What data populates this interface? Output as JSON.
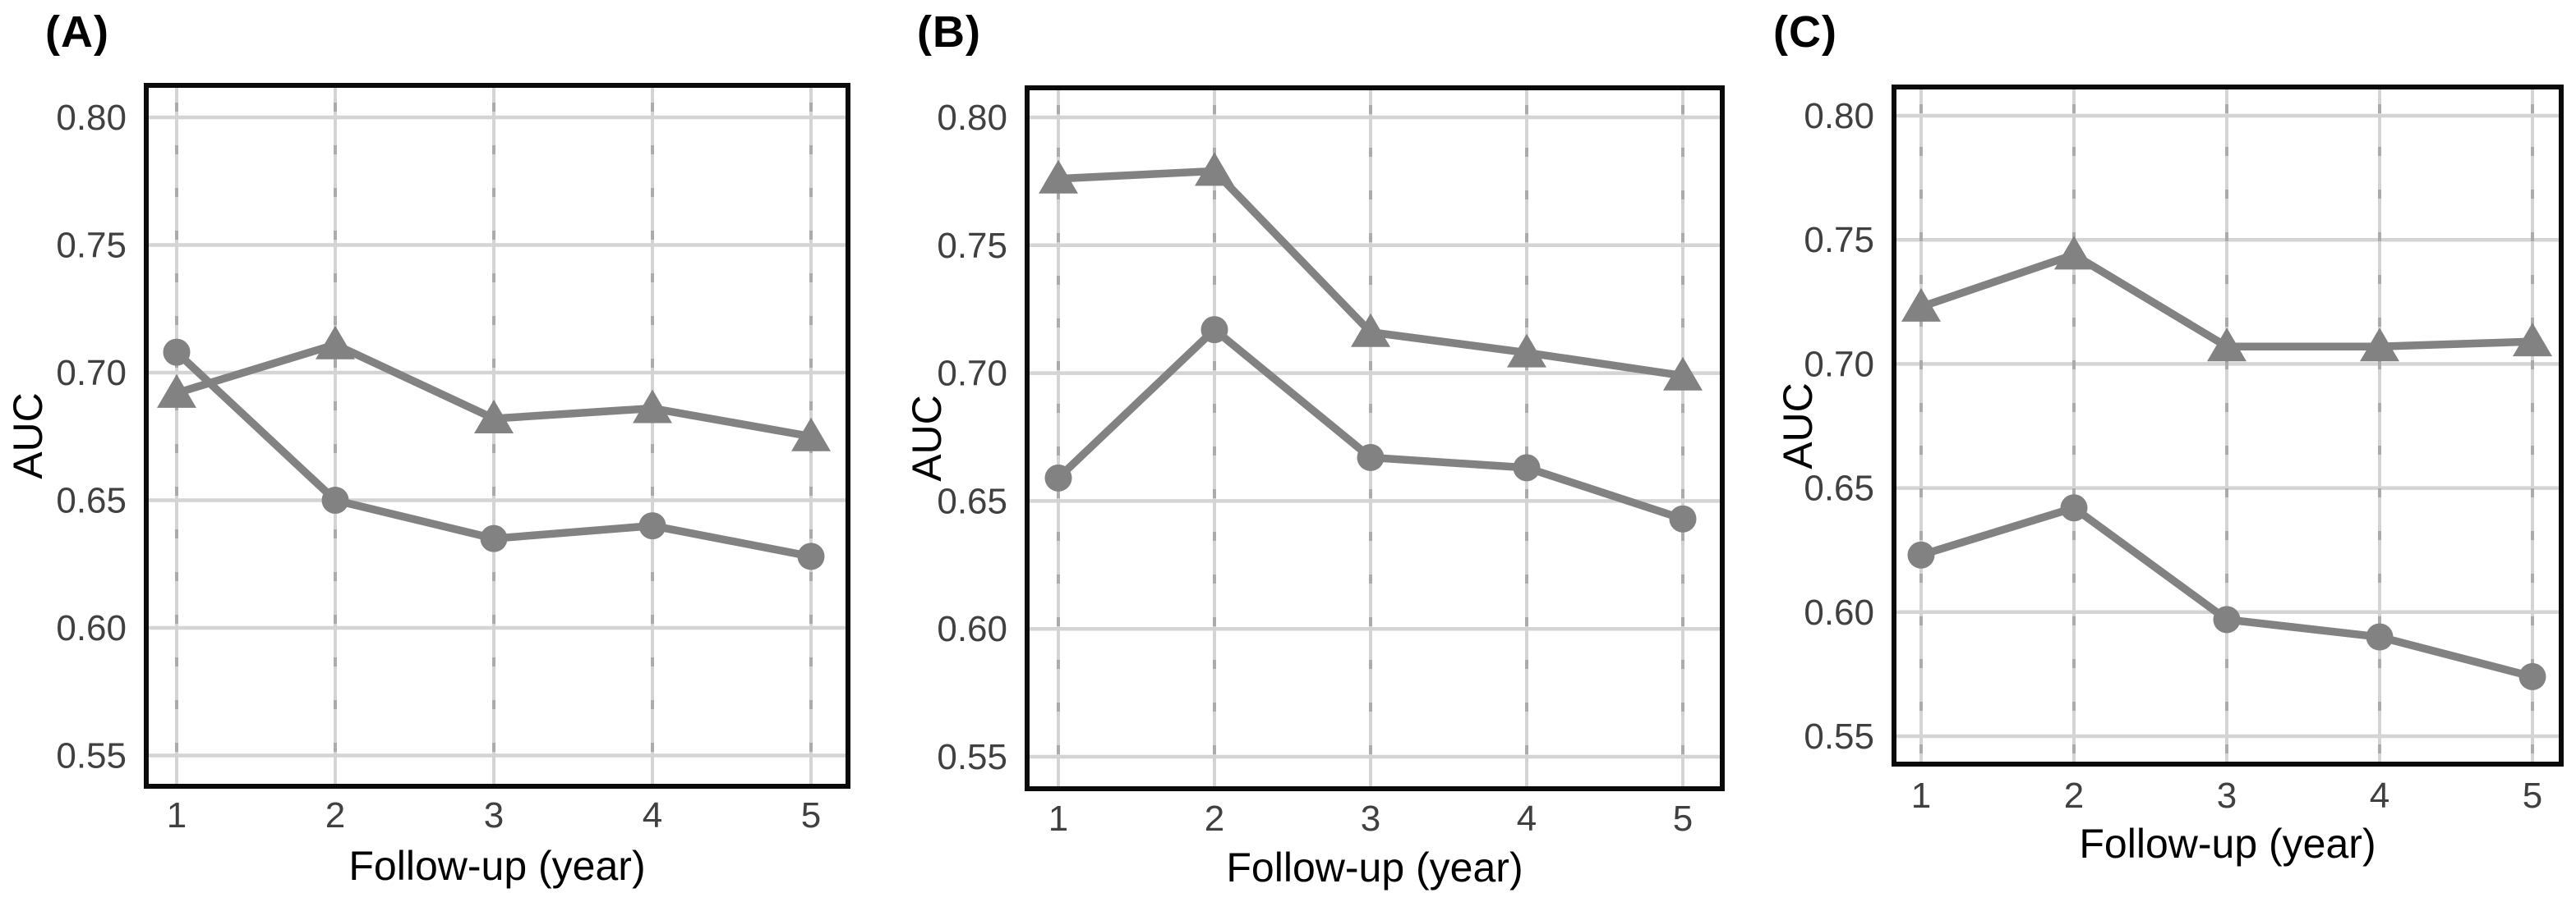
{
  "style": {
    "series_color": "#828282",
    "grid_color": "#d4d4d4",
    "grid_minor_tick_color": "#ababab",
    "border_color": "#0a0a0a",
    "tick_text_color": "#404040",
    "background_color": "#ffffff"
  },
  "chart_data": [
    {
      "type": "line",
      "title": "(A)",
      "xlabel": "Follow-up (year)",
      "ylabel": "AUC",
      "x": [
        1,
        2,
        3,
        4,
        5
      ],
      "x_tick_labels": [
        "1",
        "2",
        "3",
        "4",
        "5"
      ],
      "y_tick_values": [
        0.8,
        0.75,
        0.7,
        0.65,
        0.6,
        0.55
      ],
      "y_tick_labels": [
        "0.80",
        "0.75",
        "0.70",
        "0.65",
        "0.60",
        "0.55"
      ],
      "ylim": [
        0.539,
        0.813
      ],
      "xlim": [
        0.81,
        5.23
      ],
      "grid": true,
      "legend": "none",
      "series": [
        {
          "name": "triangle-series",
          "marker": "triangle",
          "values": [
            0.692,
            0.711,
            0.682,
            0.686,
            0.675
          ]
        },
        {
          "name": "circle-series",
          "marker": "circle",
          "values": [
            0.708,
            0.65,
            0.635,
            0.64,
            0.628
          ]
        }
      ]
    },
    {
      "type": "line",
      "title": "(B)",
      "xlabel": "Follow-up (year)",
      "ylabel": "AUC",
      "x": [
        1,
        2,
        3,
        4,
        5
      ],
      "x_tick_labels": [
        "1",
        "2",
        "3",
        "4",
        "5"
      ],
      "y_tick_values": [
        0.8,
        0.75,
        0.7,
        0.65,
        0.6,
        0.55
      ],
      "y_tick_labels": [
        "0.80",
        "0.75",
        "0.70",
        "0.65",
        "0.60",
        "0.55"
      ],
      "ylim": [
        0.539,
        0.813
      ],
      "xlim": [
        0.8,
        5.25
      ],
      "grid": true,
      "legend": "none",
      "series": [
        {
          "name": "triangle-series",
          "marker": "triangle",
          "values": [
            0.776,
            0.779,
            0.716,
            0.708,
            0.699
          ]
        },
        {
          "name": "circle-series",
          "marker": "circle",
          "values": [
            0.659,
            0.717,
            0.667,
            0.663,
            0.643
          ]
        }
      ]
    },
    {
      "type": "line",
      "title": "(C)",
      "xlabel": "Follow-up (year)",
      "ylabel": "AUC",
      "x": [
        1,
        2,
        3,
        4,
        5
      ],
      "x_tick_labels": [
        "1",
        "2",
        "3",
        "4",
        "5"
      ],
      "y_tick_values": [
        0.8,
        0.75,
        0.7,
        0.65,
        0.6,
        0.55
      ],
      "y_tick_labels": [
        "0.80",
        "0.75",
        "0.70",
        "0.65",
        "0.60",
        "0.55"
      ],
      "ylim": [
        0.539,
        0.812
      ],
      "xlim": [
        0.82,
        5.25
      ],
      "grid": true,
      "legend": "none",
      "series": [
        {
          "name": "triangle-series",
          "marker": "triangle",
          "values": [
            0.723,
            0.744,
            0.707,
            0.707,
            0.709
          ]
        },
        {
          "name": "circle-series",
          "marker": "circle",
          "values": [
            0.623,
            0.642,
            0.597,
            0.59,
            0.574
          ]
        }
      ]
    }
  ]
}
